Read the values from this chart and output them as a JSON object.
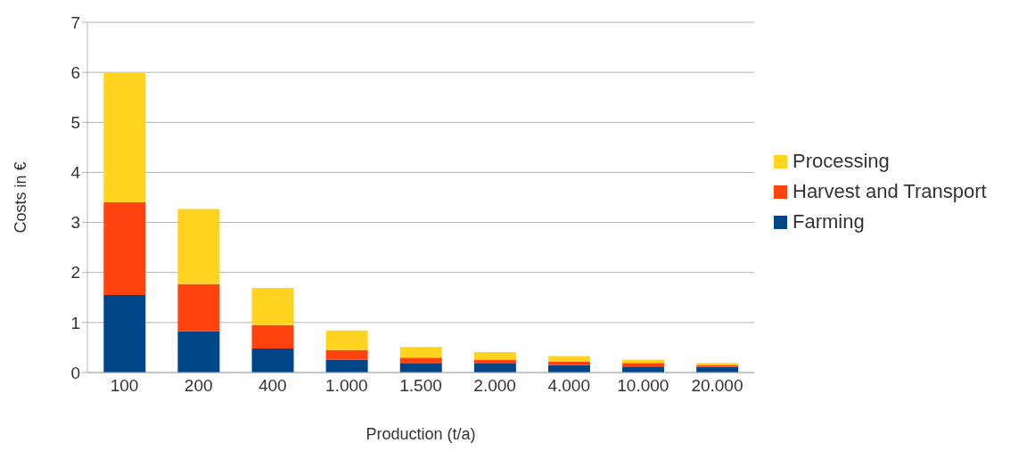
{
  "chart_data": {
    "type": "bar",
    "stacked": true,
    "xlabel": "Production (t/a)",
    "ylabel": "Costs in €",
    "categories": [
      "100",
      "200",
      "400",
      "1.000",
      "1.500",
      "2.000",
      "4.000",
      "10.000",
      "20.000"
    ],
    "series": [
      {
        "name": "Farming",
        "color": "#004586",
        "values": [
          1.55,
          0.83,
          0.48,
          0.26,
          0.19,
          0.19,
          0.15,
          0.12,
          0.11
        ]
      },
      {
        "name": "Harvest and Transport",
        "color": "#ff420e",
        "values": [
          1.85,
          0.94,
          0.47,
          0.19,
          0.11,
          0.07,
          0.07,
          0.07,
          0.04
        ]
      },
      {
        "name": "Processing",
        "color": "#ffd320",
        "values": [
          2.6,
          1.5,
          0.74,
          0.39,
          0.21,
          0.15,
          0.11,
          0.07,
          0.04
        ]
      }
    ],
    "ylim": [
      0,
      7
    ],
    "yticks": [
      0,
      1,
      2,
      3,
      4,
      5,
      6,
      7
    ],
    "grid": "y",
    "legend": "right"
  }
}
